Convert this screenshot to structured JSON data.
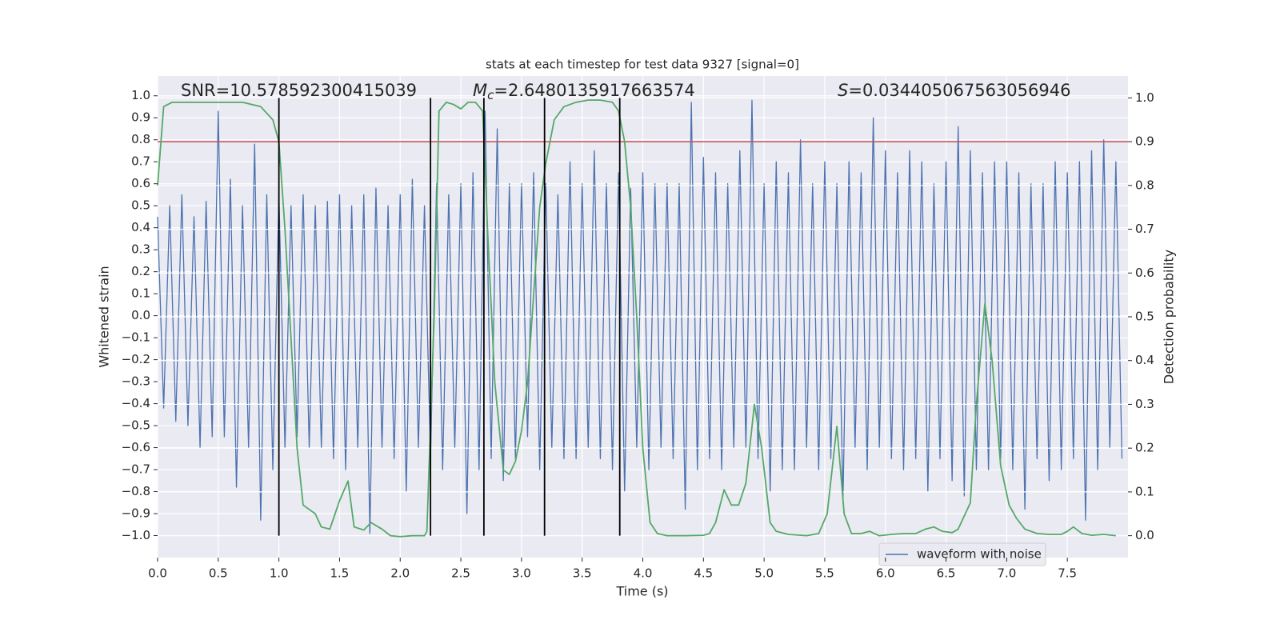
{
  "chart_data": {
    "type": "line",
    "title": "stats at each timestep for test data 9327 [signal=0]",
    "xlabel": "Time (s)",
    "ylabel": "Whitened strain",
    "y2label": "Detection probability",
    "annotations": [
      {
        "text": "SNR=10.578592300415039"
      },
      {
        "symbol": "M",
        "subscript": "c",
        "text": "=2.6480135917663574"
      },
      {
        "symbol": "S",
        "text": "=0.034405067563056946"
      }
    ],
    "xlim": [
      0,
      8
    ],
    "ylim": [
      -1.1,
      1.09
    ],
    "y2lim": [
      -0.05,
      1.05
    ],
    "xticks": [
      {
        "value": 0,
        "label": "0.0"
      },
      {
        "value": 0.5,
        "label": "0.5"
      },
      {
        "value": 1,
        "label": "1.0"
      },
      {
        "value": 1.5,
        "label": "1.5"
      },
      {
        "value": 2,
        "label": "2.0"
      },
      {
        "value": 2.5,
        "label": "2.5"
      },
      {
        "value": 3,
        "label": "3.0"
      },
      {
        "value": 3.5,
        "label": "3.5"
      },
      {
        "value": 4,
        "label": "4.0"
      },
      {
        "value": 4.5,
        "label": "4.5"
      },
      {
        "value": 5,
        "label": "5.0"
      },
      {
        "value": 5.5,
        "label": "5.5"
      },
      {
        "value": 6,
        "label": "6.0"
      },
      {
        "value": 6.5,
        "label": "6.5"
      },
      {
        "value": 7,
        "label": "7.0"
      },
      {
        "value": 7.5,
        "label": "7.5"
      }
    ],
    "yticks": [
      {
        "value": -1,
        "label": "−1.0"
      },
      {
        "value": -0.9,
        "label": "−0.9"
      },
      {
        "value": -0.8,
        "label": "−0.8"
      },
      {
        "value": -0.7,
        "label": "−0.7"
      },
      {
        "value": -0.6,
        "label": "−0.6"
      },
      {
        "value": -0.5,
        "label": "−0.5"
      },
      {
        "value": -0.4,
        "label": "−0.4"
      },
      {
        "value": -0.3,
        "label": "−0.3"
      },
      {
        "value": -0.2,
        "label": "−0.2"
      },
      {
        "value": -0.1,
        "label": "−0.1"
      },
      {
        "value": 0,
        "label": "0.0"
      },
      {
        "value": 0.1,
        "label": "0.1"
      },
      {
        "value": 0.2,
        "label": "0.2"
      },
      {
        "value": 0.3,
        "label": "0.3"
      },
      {
        "value": 0.4,
        "label": "0.4"
      },
      {
        "value": 0.5,
        "label": "0.5"
      },
      {
        "value": 0.6,
        "label": "0.6"
      },
      {
        "value": 0.7,
        "label": "0.7"
      },
      {
        "value": 0.8,
        "label": "0.8"
      },
      {
        "value": 0.9,
        "label": "0.9"
      },
      {
        "value": 1,
        "label": "1.0"
      }
    ],
    "y2ticks": [
      {
        "value": 0,
        "label": "0.0"
      },
      {
        "value": 0.1,
        "label": "0.1"
      },
      {
        "value": 0.2,
        "label": "0.2"
      },
      {
        "value": 0.3,
        "label": "0.3"
      },
      {
        "value": 0.4,
        "label": "0.4"
      },
      {
        "value": 0.5,
        "label": "0.5"
      },
      {
        "value": 0.6,
        "label": "0.6"
      },
      {
        "value": 0.7,
        "label": "0.7"
      },
      {
        "value": 0.8,
        "label": "0.8"
      },
      {
        "value": 0.9,
        "label": "0.9"
      },
      {
        "value": 1,
        "label": "1.0"
      }
    ],
    "grid": true,
    "legend": "lower right",
    "threshold": 0.9,
    "threshold_color": "#c44e52",
    "vlines": [
      1.0,
      2.25,
      2.69,
      3.19,
      3.81
    ],
    "vline_span": [
      0,
      1
    ],
    "vline_color": "#000000",
    "series": [
      {
        "name": "waveform with noise",
        "color": "#4c72b0",
        "x": [
          0,
          0.05,
          0.1,
          0.15,
          0.2,
          0.25,
          0.3,
          0.35,
          0.4,
          0.45,
          0.5,
          0.55,
          0.6,
          0.65,
          0.7,
          0.75,
          0.8,
          0.85,
          0.9,
          0.95,
          1,
          1.05,
          1.1,
          1.15,
          1.2,
          1.25,
          1.3,
          1.35,
          1.4,
          1.45,
          1.5,
          1.55,
          1.6,
          1.65,
          1.7,
          1.75,
          1.8,
          1.85,
          1.9,
          1.95,
          2,
          2.05,
          2.1,
          2.15,
          2.2,
          2.25,
          2.3,
          2.35,
          2.4,
          2.45,
          2.5,
          2.55,
          2.6,
          2.65,
          2.7,
          2.75,
          2.8,
          2.85,
          2.9,
          2.95,
          3,
          3.05,
          3.1,
          3.15,
          3.2,
          3.25,
          3.3,
          3.35,
          3.4,
          3.45,
          3.5,
          3.55,
          3.6,
          3.65,
          3.7,
          3.75,
          3.8,
          3.85,
          3.9,
          3.95,
          4,
          4.05,
          4.1,
          4.15,
          4.2,
          4.25,
          4.3,
          4.35,
          4.4,
          4.45,
          4.5,
          4.55,
          4.6,
          4.65,
          4.7,
          4.75,
          4.8,
          4.85,
          4.9,
          4.95,
          5,
          5.05,
          5.1,
          5.15,
          5.2,
          5.25,
          5.3,
          5.35,
          5.4,
          5.45,
          5.5,
          5.55,
          5.6,
          5.65,
          5.7,
          5.75,
          5.8,
          5.85,
          5.9,
          5.95,
          6,
          6.05,
          6.1,
          6.15,
          6.2,
          6.25,
          6.3,
          6.35,
          6.4,
          6.45,
          6.5,
          6.55,
          6.6,
          6.65,
          6.7,
          6.75,
          6.8,
          6.85,
          6.9,
          6.95,
          7,
          7.05,
          7.1,
          7.15,
          7.2,
          7.25,
          7.3,
          7.35,
          7.4,
          7.45,
          7.5,
          7.55,
          7.6,
          7.65,
          7.7,
          7.75,
          7.8,
          7.85,
          7.9,
          7.95
        ],
        "values": [
          0.45,
          -0.42,
          0.5,
          -0.48,
          0.55,
          -0.5,
          0.45,
          -0.6,
          0.52,
          -0.55,
          0.93,
          -0.55,
          0.62,
          -0.78,
          0.5,
          -0.6,
          0.78,
          -0.93,
          0.55,
          -0.7,
          0.55,
          -0.6,
          0.5,
          -0.55,
          0.55,
          -0.6,
          0.5,
          -0.6,
          0.52,
          -0.65,
          0.55,
          -0.7,
          0.5,
          -0.6,
          0.55,
          -0.99,
          0.58,
          -0.6,
          0.5,
          -0.65,
          0.55,
          -0.8,
          0.62,
          -0.6,
          0.5,
          -0.65,
          0.6,
          -0.7,
          0.55,
          -0.6,
          0.6,
          -0.9,
          0.65,
          -0.7,
          0.93,
          -0.65,
          0.85,
          -0.75,
          0.6,
          -0.65,
          0.6,
          -0.55,
          0.65,
          -0.7,
          0.6,
          -0.6,
          0.55,
          -0.65,
          0.7,
          -0.65,
          0.6,
          -0.6,
          0.75,
          -0.65,
          0.6,
          -0.7,
          0.65,
          -0.8,
          0.58,
          -0.6,
          0.65,
          -0.7,
          0.6,
          -0.6,
          0.6,
          -0.65,
          0.6,
          -0.88,
          0.97,
          -0.7,
          0.72,
          -0.65,
          0.65,
          -0.7,
          0.6,
          -0.6,
          0.75,
          -0.6,
          0.98,
          -0.65,
          0.6,
          -0.8,
          0.7,
          -0.7,
          0.65,
          -0.7,
          0.8,
          -0.6,
          0.6,
          -0.7,
          0.7,
          -0.65,
          0.6,
          -0.85,
          0.7,
          -0.6,
          0.65,
          -0.7,
          0.9,
          -0.6,
          0.75,
          -0.65,
          0.65,
          -0.7,
          0.75,
          -0.65,
          0.7,
          -0.8,
          0.6,
          -0.65,
          0.7,
          -0.75,
          0.86,
          -0.82,
          0.75,
          -0.7,
          0.65,
          -0.7,
          0.7,
          -0.65,
          0.7,
          -0.7,
          0.65,
          -0.88,
          0.6,
          -0.65,
          0.6,
          -0.75,
          0.7,
          -0.7,
          0.65,
          -0.65,
          0.7,
          -0.93,
          0.75,
          -0.7,
          0.8,
          -0.6,
          0.7,
          -0.65
        ]
      },
      {
        "color": "#55a868",
        "axis": "y2",
        "x": [
          0,
          0.05,
          0.12,
          0.3,
          0.5,
          0.7,
          0.85,
          0.95,
          1.0,
          1.05,
          1.1,
          1.15,
          1.2,
          1.25,
          1.3,
          1.35,
          1.42,
          1.5,
          1.57,
          1.62,
          1.7,
          1.76,
          1.85,
          1.92,
          2.0,
          2.1,
          2.2,
          2.22,
          2.28,
          2.32,
          2.38,
          2.44,
          2.5,
          2.56,
          2.62,
          2.68,
          2.72,
          2.78,
          2.85,
          2.9,
          2.95,
          3.0,
          3.05,
          3.1,
          3.15,
          3.2,
          3.27,
          3.35,
          3.45,
          3.55,
          3.65,
          3.75,
          3.8,
          3.85,
          3.9,
          3.95,
          4.0,
          4.06,
          4.12,
          4.2,
          4.35,
          4.5,
          4.55,
          4.6,
          4.67,
          4.73,
          4.79,
          4.85,
          4.92,
          4.98,
          5.05,
          5.1,
          5.2,
          5.35,
          5.45,
          5.52,
          5.6,
          5.66,
          5.72,
          5.8,
          5.87,
          5.95,
          6.05,
          6.15,
          6.25,
          6.33,
          6.4,
          6.47,
          6.55,
          6.6,
          6.7,
          6.75,
          6.82,
          6.88,
          6.95,
          7.02,
          7.08,
          7.15,
          7.25,
          7.35,
          7.45,
          7.5,
          7.55,
          7.62,
          7.7,
          7.8,
          7.9
        ],
        "values": [
          0.8,
          0.98,
          0.99,
          0.99,
          0.99,
          0.99,
          0.98,
          0.95,
          0.9,
          0.7,
          0.45,
          0.2,
          0.07,
          0.06,
          0.05,
          0.02,
          0.015,
          0.08,
          0.125,
          0.02,
          0.013,
          0.03,
          0.015,
          0.0,
          -0.002,
          0.0,
          0.0,
          0.01,
          0.5,
          0.97,
          0.99,
          0.985,
          0.975,
          0.99,
          0.99,
          0.97,
          0.7,
          0.35,
          0.15,
          0.14,
          0.17,
          0.24,
          0.35,
          0.55,
          0.75,
          0.85,
          0.95,
          0.98,
          0.99,
          0.995,
          0.995,
          0.99,
          0.97,
          0.9,
          0.75,
          0.5,
          0.2,
          0.03,
          0.005,
          0.0,
          0.0,
          0.001,
          0.005,
          0.03,
          0.105,
          0.07,
          0.07,
          0.12,
          0.3,
          0.2,
          0.03,
          0.01,
          0.003,
          0.0,
          0.005,
          0.05,
          0.25,
          0.05,
          0.005,
          0.005,
          0.01,
          0.0,
          0.003,
          0.005,
          0.005,
          0.015,
          0.02,
          0.01,
          0.007,
          0.015,
          0.075,
          0.3,
          0.53,
          0.4,
          0.16,
          0.07,
          0.04,
          0.015,
          0.005,
          0.003,
          0.003,
          0.01,
          0.02,
          0.005,
          0.001,
          0.003,
          0.0
        ]
      }
    ]
  }
}
